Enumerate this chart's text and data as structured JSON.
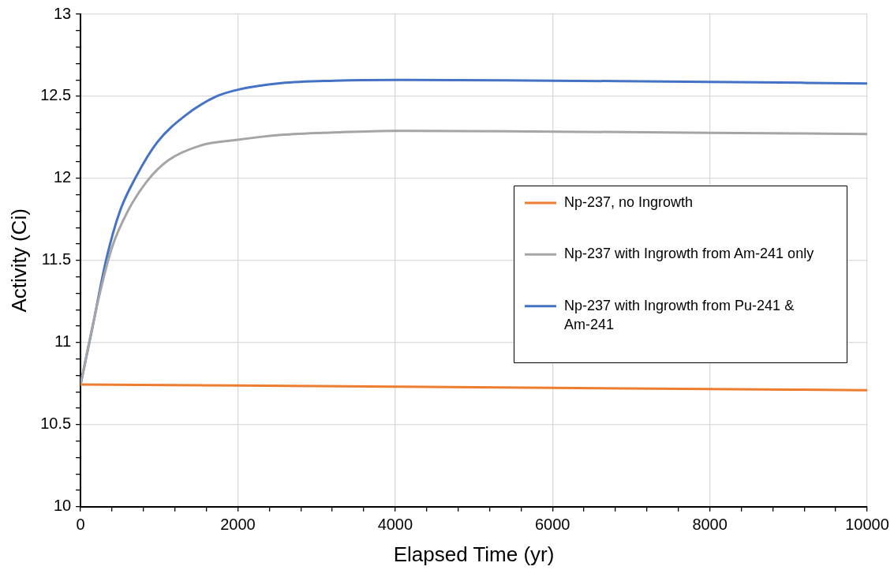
{
  "chart_data": {
    "type": "line",
    "xlabel": "Elapsed Time (yr)",
    "ylabel": "Activity (Ci)",
    "xlim": [
      0,
      10000
    ],
    "ylim": [
      10,
      13
    ],
    "xticks": [
      0,
      {
        "value": 400,
        "label": null
      },
      {
        "value": 800,
        "label": null
      },
      {
        "value": 1200,
        "label": null
      },
      {
        "value": 1600,
        "label": null
      },
      2000,
      {
        "value": 2400,
        "label": null
      },
      {
        "value": 2800,
        "label": null
      },
      {
        "value": 3200,
        "label": null
      },
      {
        "value": 3600,
        "label": null
      },
      4000,
      {
        "value": 4400,
        "label": null
      },
      {
        "value": 4800,
        "label": null
      },
      {
        "value": 5200,
        "label": null
      },
      {
        "value": 5600,
        "label": null
      },
      6000,
      {
        "value": 6400,
        "label": null
      },
      {
        "value": 6800,
        "label": null
      },
      {
        "value": 7200,
        "label": null
      },
      {
        "value": 7600,
        "label": null
      },
      8000,
      {
        "value": 8400,
        "label": null
      },
      {
        "value": 8800,
        "label": null
      },
      {
        "value": 9200,
        "label": null
      },
      {
        "value": 9600,
        "label": null
      },
      10000
    ],
    "yticks": [
      10,
      {
        "value": 10.1,
        "label": null
      },
      {
        "value": 10.2,
        "label": null
      },
      {
        "value": 10.3,
        "label": null
      },
      {
        "value": 10.4,
        "label": null
      },
      10.5,
      {
        "value": 10.6,
        "label": null
      },
      {
        "value": 10.7,
        "label": null
      },
      {
        "value": 10.8,
        "label": null
      },
      {
        "value": 10.9,
        "label": null
      },
      11,
      {
        "value": 11.1,
        "label": null
      },
      {
        "value": 11.2,
        "label": null
      },
      {
        "value": 11.3,
        "label": null
      },
      {
        "value": 11.4,
        "label": null
      },
      11.5,
      {
        "value": 11.6,
        "label": null
      },
      {
        "value": 11.7,
        "label": null
      },
      {
        "value": 11.8,
        "label": null
      },
      {
        "value": 11.9,
        "label": null
      },
      12,
      {
        "value": 12.1,
        "label": null
      },
      {
        "value": 12.2,
        "label": null
      },
      {
        "value": 12.3,
        "label": null
      },
      {
        "value": 12.4,
        "label": null
      },
      12.5,
      {
        "value": 12.6,
        "label": null
      },
      {
        "value": 12.7,
        "label": null
      },
      {
        "value": 12.8,
        "label": null
      },
      {
        "value": 12.9,
        "label": null
      },
      13
    ],
    "grid": true,
    "legend": "right",
    "marker": "none",
    "line_style": "solid",
    "series": [
      {
        "name": "Np-237, no Ingrowth",
        "color": "#ed7d31",
        "x": [
          0,
          2000,
          4000,
          6000,
          8000,
          10000
        ],
        "values": [
          10.745,
          10.738,
          10.731,
          10.724,
          10.717,
          10.71
        ]
      },
      {
        "name": "Np-237 with Ingrowth from Am-241 only",
        "color": "#a5a5a5",
        "x": [
          0,
          225,
          400,
          600,
          840,
          1115,
          1525,
          2000,
          2550,
          3225,
          4000,
          6000,
          8000,
          10000
        ],
        "values": [
          10.745,
          11.26,
          11.58,
          11.8,
          11.98,
          12.11,
          12.2,
          12.235,
          12.265,
          12.28,
          12.29,
          12.285,
          12.278,
          12.27
        ]
      },
      {
        "name": "Np-237 with Ingrowth from Pu-241 & Am-241",
        "color": "#4472c4",
        "x": [
          0,
          154,
          328,
          500,
          705,
          975,
          1350,
          1730,
          2000,
          2550,
          3225,
          4000,
          6000,
          8000,
          10000
        ],
        "values": [
          10.745,
          11.1,
          11.51,
          11.8,
          12.01,
          12.22,
          12.39,
          12.5,
          12.54,
          12.58,
          12.595,
          12.6,
          12.595,
          12.588,
          12.578
        ]
      }
    ]
  }
}
